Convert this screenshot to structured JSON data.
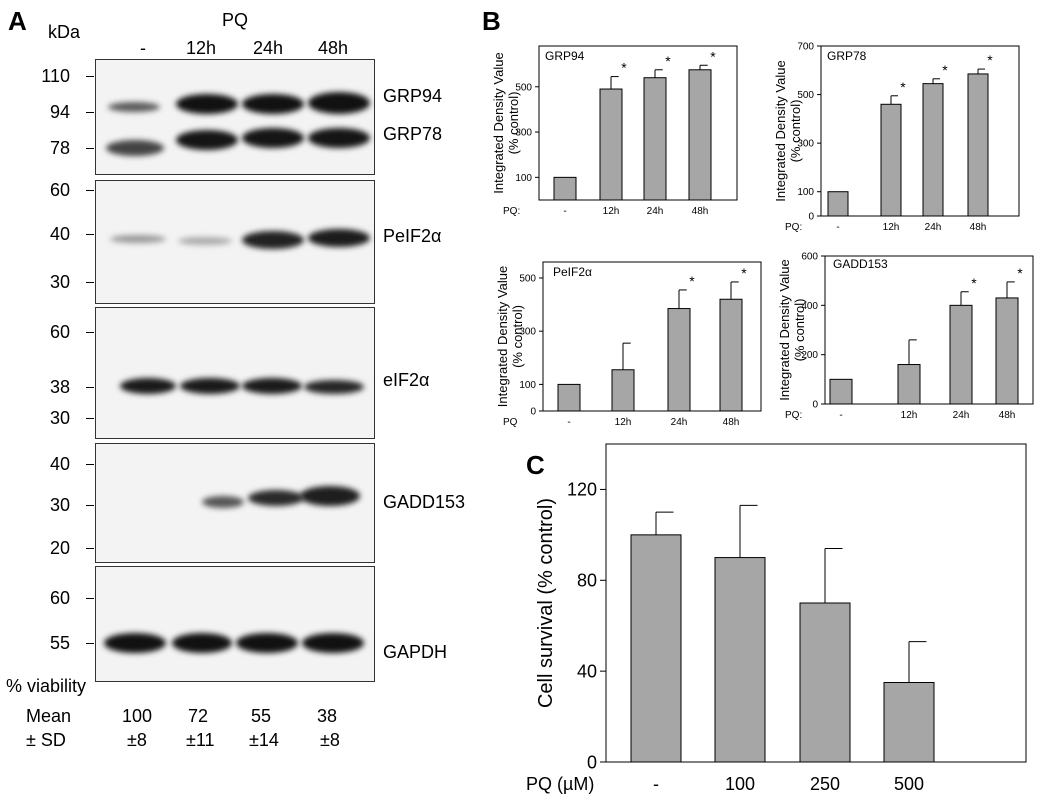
{
  "panel_a": {
    "letter": "A",
    "kda": "kDa",
    "treatment": "PQ",
    "lanes": [
      "-",
      "12h",
      "24h",
      "48h"
    ],
    "blots": [
      {
        "markers": [
          "110",
          "94",
          "78"
        ],
        "labels": [
          "GRP94",
          "GRP78"
        ]
      },
      {
        "markers": [
          "60",
          "40",
          "30"
        ],
        "labels": [
          "PeIF2α"
        ]
      },
      {
        "markers": [
          "60",
          "38",
          "30"
        ],
        "labels": [
          "eIF2α"
        ]
      },
      {
        "markers": [
          "40",
          "30",
          "20"
        ],
        "labels": [
          "GADD153"
        ]
      },
      {
        "markers": [
          "60",
          "55"
        ],
        "labels": [
          "GAPDH"
        ]
      }
    ],
    "viability": {
      "title": "% viability",
      "mean_label": "Mean",
      "sd_label": "± SD",
      "means": [
        "100",
        "72",
        "55",
        "38"
      ],
      "sds": [
        "±8",
        "±11",
        "±14",
        "±8"
      ]
    }
  },
  "panel_b": {
    "letter": "B"
  },
  "panel_c": {
    "letter": "C"
  },
  "chart_data": [
    {
      "id": "grp94",
      "type": "bar",
      "title": "GRP94",
      "ylabel": "Integrated Density Value (% control)",
      "xprefix": "PQ:",
      "categories": [
        "-",
        "12h",
        "24h",
        "48h"
      ],
      "values": [
        100,
        490,
        540,
        575
      ],
      "errors": [
        0,
        55,
        35,
        20
      ],
      "significant": [
        false,
        true,
        true,
        true
      ],
      "yticks": [
        "100",
        "300",
        "500"
      ],
      "ylim": [
        0,
        680
      ]
    },
    {
      "id": "grp78",
      "type": "bar",
      "title": "GRP78",
      "ylabel": "Integrated Density Value (% control)",
      "xprefix": "PQ:",
      "categories": [
        "-",
        "12h",
        "24h",
        "48h"
      ],
      "values": [
        100,
        460,
        545,
        585
      ],
      "errors": [
        0,
        35,
        20,
        20
      ],
      "significant": [
        false,
        true,
        true,
        true
      ],
      "yticks": [
        "0",
        "100",
        "300",
        "500",
        "700"
      ],
      "ylim": [
        0,
        700
      ]
    },
    {
      "id": "peif2a",
      "type": "bar",
      "title": "PeIF2α",
      "ylabel": "Integrated Density Value (% control)",
      "xprefix": "PQ",
      "categories": [
        "-",
        "12h",
        "24h",
        "48h"
      ],
      "values": [
        100,
        155,
        385,
        420
      ],
      "errors": [
        0,
        100,
        70,
        65
      ],
      "significant": [
        false,
        false,
        true,
        true
      ],
      "yticks": [
        "0",
        "100",
        "300",
        "500"
      ],
      "ylim": [
        0,
        560
      ]
    },
    {
      "id": "gadd153",
      "type": "bar",
      "title": "GADD153",
      "ylabel": "Integrated Density Value (% control)",
      "xprefix": "PQ:",
      "categories": [
        "-",
        "12h",
        "24h",
        "48h"
      ],
      "values": [
        100,
        160,
        400,
        430
      ],
      "errors": [
        0,
        100,
        55,
        65
      ],
      "significant": [
        false,
        false,
        true,
        true
      ],
      "yticks": [
        "0",
        "200",
        "400",
        "600"
      ],
      "ylim": [
        0,
        600
      ]
    },
    {
      "id": "survival",
      "type": "bar",
      "title": "",
      "ylabel": "Cell survival (% control)",
      "xprefix": "PQ (µM)",
      "categories": [
        "-",
        "100",
        "250",
        "500"
      ],
      "values": [
        100,
        90,
        70,
        35
      ],
      "errors": [
        10,
        23,
        24,
        18
      ],
      "significant": [
        false,
        false,
        false,
        false
      ],
      "yticks": [
        "0",
        "40",
        "80",
        "120"
      ],
      "ylim": [
        0,
        140
      ]
    }
  ]
}
